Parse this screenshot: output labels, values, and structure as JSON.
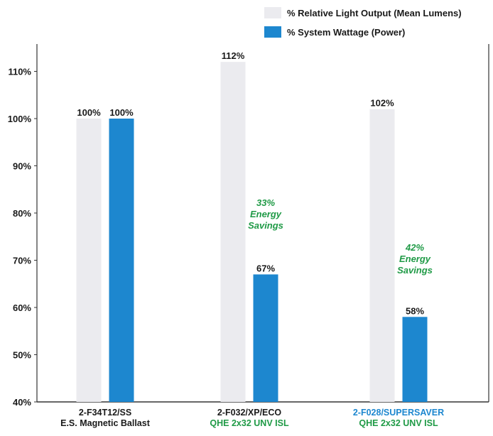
{
  "chart_data": {
    "type": "bar",
    "categories": [
      {
        "lines": [
          "2-F34T12/SS",
          "E.S. Magnetic Ballast"
        ],
        "colors": [
          "dark",
          "dark"
        ]
      },
      {
        "lines": [
          "2-F032/XP/ECO",
          "QHE 2x32 UNV ISL"
        ],
        "colors": [
          "dark",
          "green"
        ]
      },
      {
        "lines": [
          "2-F028/SUPERSAVER",
          "QHE 2x32 UNV ISL"
        ],
        "colors": [
          "blue",
          "green"
        ]
      }
    ],
    "series": [
      {
        "name": "% Relative Light Output (Mean Lumens)",
        "values": [
          100,
          112,
          102
        ],
        "labels": [
          "100%",
          "112%",
          "102%"
        ],
        "color": "#ebebef"
      },
      {
        "name": "% System Wattage (Power)",
        "values": [
          100,
          67,
          58
        ],
        "labels": [
          "100%",
          "67%",
          "58%"
        ],
        "color": "#1d87cf"
      }
    ],
    "annotations": [
      {
        "category_index": 1,
        "lines": [
          "33%",
          "Energy",
          "Savings"
        ]
      },
      {
        "category_index": 2,
        "lines": [
          "42%",
          "Energy",
          "Savings"
        ]
      }
    ],
    "yticks": [
      {
        "value": 40,
        "label": "40%"
      },
      {
        "value": 50,
        "label": "50%"
      },
      {
        "value": 60,
        "label": "60%"
      },
      {
        "value": 70,
        "label": "70%"
      },
      {
        "value": 80,
        "label": "80%"
      },
      {
        "value": 90,
        "label": "90%"
      },
      {
        "value": 100,
        "label": "100%"
      },
      {
        "value": 110,
        "label": "110%"
      }
    ],
    "ylim": [
      40,
      118
    ],
    "grid": false,
    "legend_position": "top-right"
  },
  "colors": {
    "text_dark": "#1a1a1a",
    "savings_green": "#1f9a46",
    "category_blue": "#1d87cf",
    "axis": "#333333"
  }
}
